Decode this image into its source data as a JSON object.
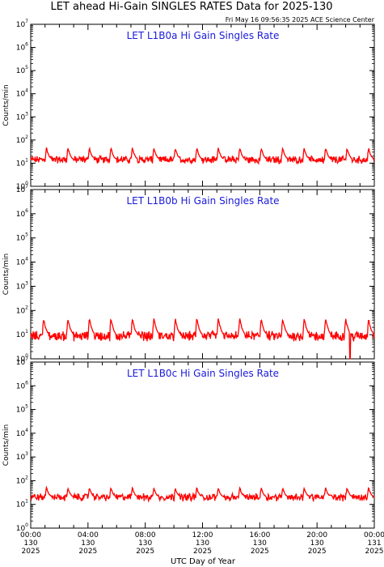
{
  "header": {
    "title": "LET ahead Hi-Gain SINGLES RATES Data for 2025-130",
    "timestamp": "Fri May 16 09:56:35 2025 ACE Science Center"
  },
  "colors": {
    "trace": "#ff0000",
    "panel_title": "#1a1adb",
    "axes": "#000000",
    "background": "#ffffff"
  },
  "chart_data": [
    {
      "type": "line",
      "title": "LET L1B0a Hi Gain Singles Rate",
      "ylabel": "Counts/min",
      "xlabel": "UTC Day of Year",
      "yscale": "log",
      "ylim": [
        1,
        10000000
      ],
      "ytick_exponents": [
        0,
        1,
        2,
        3,
        4,
        5,
        6,
        7
      ],
      "xlim_hours": [
        0,
        24
      ],
      "series": [
        {
          "baseline": 14,
          "noise_low": 8,
          "noise_high": 25,
          "spike_peak": 50,
          "spike_hours": [
            1.1,
            2.6,
            4.1,
            5.6,
            7.1,
            8.6,
            10.1,
            11.6,
            13.1,
            14.6,
            16.1,
            17.6,
            19.1,
            20.6,
            22.1,
            23.6
          ]
        }
      ]
    },
    {
      "type": "line",
      "title": "LET L1B0b Hi Gain Singles Rate",
      "ylabel": "Counts/min",
      "xlabel": "UTC Day of Year",
      "yscale": "log",
      "ylim": [
        1,
        10000000
      ],
      "ytick_exponents": [
        0,
        1,
        2,
        3,
        4,
        5,
        6,
        7
      ],
      "xlim_hours": [
        0,
        24
      ],
      "series": [
        {
          "baseline": 9,
          "noise_low": 4,
          "noise_high": 18,
          "spike_peak": 50,
          "dropout_hours": [
            22.3
          ],
          "spike_hours": [
            0.9,
            2.6,
            4.1,
            5.6,
            7.1,
            8.6,
            10.1,
            11.6,
            13.1,
            14.6,
            16.1,
            17.6,
            19.1,
            20.6,
            22.0,
            23.6
          ]
        }
      ]
    },
    {
      "type": "line",
      "title": "LET L1B0c Hi Gain Singles Rate",
      "ylabel": "Counts/min",
      "xlabel": "UTC Day of Year",
      "yscale": "log",
      "ylim": [
        1,
        10000000
      ],
      "ytick_exponents": [
        0,
        1,
        2,
        3,
        4,
        5,
        6,
        7
      ],
      "xlim_hours": [
        0,
        24
      ],
      "series": [
        {
          "baseline": 20,
          "noise_low": 12,
          "noise_high": 35,
          "spike_peak": 55,
          "spike_hours": [
            1.1,
            2.6,
            4.1,
            5.6,
            7.1,
            8.6,
            10.1,
            11.6,
            13.1,
            14.6,
            16.1,
            17.6,
            19.1,
            20.6,
            22.1,
            23.6
          ]
        }
      ]
    }
  ],
  "x_ticks": [
    {
      "hour": 0,
      "time": "00:00",
      "doy": "130",
      "year": "2025"
    },
    {
      "hour": 4,
      "time": "04:00",
      "doy": "130",
      "year": "2025"
    },
    {
      "hour": 8,
      "time": "08:00",
      "doy": "130",
      "year": "2025"
    },
    {
      "hour": 12,
      "time": "12:00",
      "doy": "130",
      "year": "2025"
    },
    {
      "hour": 16,
      "time": "16:00",
      "doy": "130",
      "year": "2025"
    },
    {
      "hour": 20,
      "time": "20:00",
      "doy": "130",
      "year": "2025"
    },
    {
      "hour": 24,
      "time": "00:00",
      "doy": "131",
      "year": "2025"
    }
  ],
  "x_axis_label": "UTC Day of Year"
}
